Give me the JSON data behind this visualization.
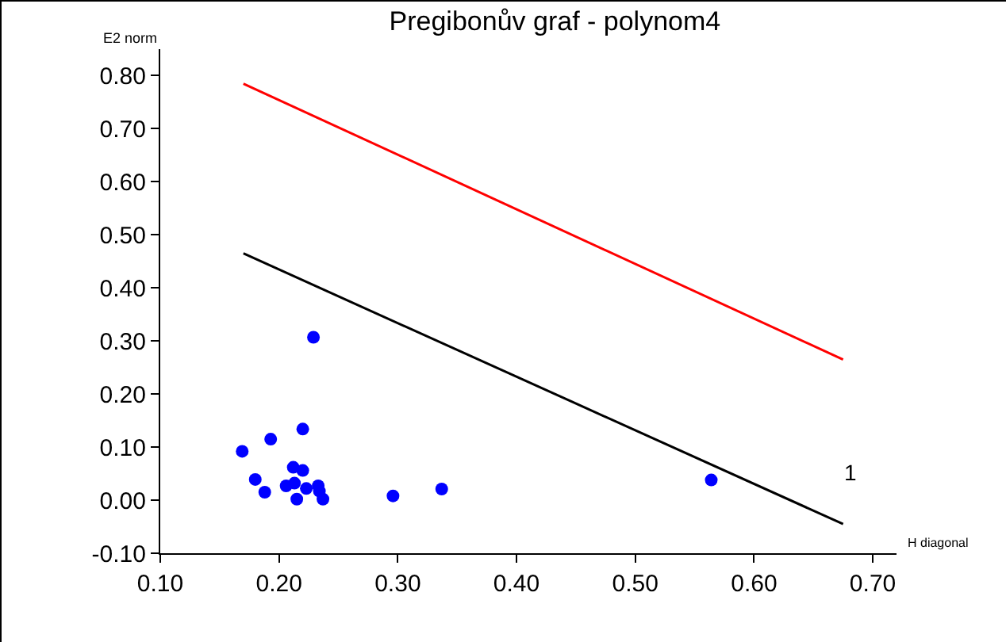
{
  "chart_data": {
    "type": "scatter",
    "title": "Pregibonův graf - polynom4",
    "xlabel": "H diagonal",
    "ylabel": "E2 norm",
    "xlim": [
      0.1,
      0.72
    ],
    "ylim": [
      -0.1,
      0.85
    ],
    "xticks": [
      {
        "value": 0.1,
        "label": "0.10"
      },
      {
        "value": 0.2,
        "label": "0.20"
      },
      {
        "value": 0.3,
        "label": "0.30"
      },
      {
        "value": 0.4,
        "label": "0.40"
      },
      {
        "value": 0.5,
        "label": "0.50"
      },
      {
        "value": 0.6,
        "label": "0.60"
      },
      {
        "value": 0.7,
        "label": "0.70"
      }
    ],
    "yticks": [
      {
        "value": -0.1,
        "label": "-0.10"
      },
      {
        "value": 0,
        "label": "0.00"
      },
      {
        "value": 0.1,
        "label": "0.10"
      },
      {
        "value": 0.2,
        "label": "0.20"
      },
      {
        "value": 0.3,
        "label": "0.30"
      },
      {
        "value": 0.4,
        "label": "0.40"
      },
      {
        "value": 0.5,
        "label": "0.50"
      },
      {
        "value": 0.6,
        "label": "0.60"
      },
      {
        "value": 0.7,
        "label": "0.70"
      },
      {
        "value": 0.8,
        "label": "0.80"
      }
    ],
    "grid": false,
    "series": [
      {
        "marker": "circle",
        "color": "#0000ff",
        "x": [
          0.169,
          0.18,
          0.188,
          0.193,
          0.229,
          0.22,
          0.212,
          0.22,
          0.206,
          0.213,
          0.215,
          0.223,
          0.233,
          0.234,
          0.237,
          0.296,
          0.337,
          0.564
        ],
        "values": [
          0.092,
          0.039,
          0.015,
          0.115,
          0.307,
          0.134,
          0.062,
          0.056,
          0.027,
          0.032,
          0.002,
          0.022,
          0.027,
          0.017,
          0.002,
          0.008,
          0.021,
          0.038
        ]
      },
      {
        "type": "line",
        "color": "#ff0000",
        "x": [
          0.17,
          0.675
        ],
        "values": [
          0.785,
          0.265
        ]
      },
      {
        "type": "line",
        "color": "#000000",
        "x": [
          0.17,
          0.675
        ],
        "values": [
          0.465,
          -0.045
        ]
      }
    ],
    "annotations": [
      "1"
    ]
  }
}
